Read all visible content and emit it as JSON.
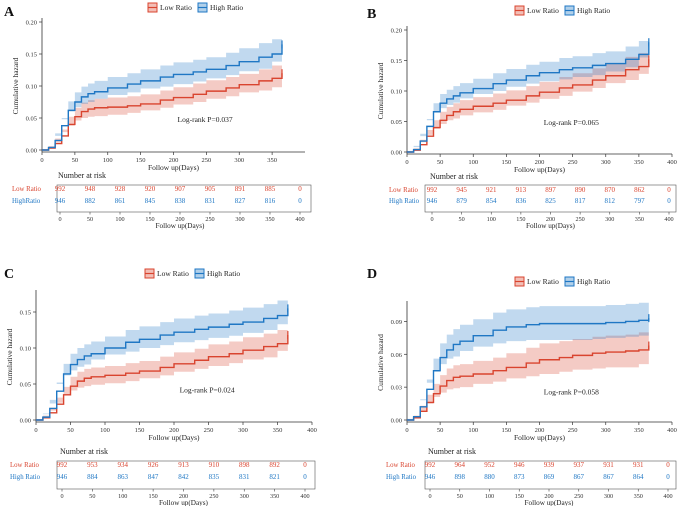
{
  "legend": {
    "low_label": "Low Ratio",
    "high_label": "High Ratio",
    "low_color": "#d9442f",
    "high_color": "#1f77c4"
  },
  "chart_data": [
    {
      "panel": "A",
      "type": "line",
      "title": "",
      "xlabel": "Follow up(Days)",
      "ylabel": "Cumulative hazard",
      "xlim": [
        0,
        400
      ],
      "ylim": [
        0,
        0.2
      ],
      "xticks": [
        0,
        50,
        100,
        150,
        200,
        250,
        300,
        350
      ],
      "yticks": [
        "0.00",
        "0.05",
        "0.10",
        "0.15",
        "0.20"
      ],
      "annotation": "Log-rank P=0.037",
      "series": [
        {
          "name": "Low Ratio",
          "x": [
            0,
            10,
            20,
            30,
            40,
            50,
            60,
            70,
            80,
            100,
            130,
            150,
            180,
            200,
            230,
            250,
            280,
            300,
            330,
            350,
            365
          ],
          "y": [
            0,
            0.003,
            0.01,
            0.022,
            0.04,
            0.052,
            0.06,
            0.064,
            0.066,
            0.067,
            0.069,
            0.072,
            0.078,
            0.082,
            0.087,
            0.092,
            0.097,
            0.102,
            0.108,
            0.112,
            0.12
          ],
          "lower": [
            0,
            0,
            0.002,
            0.012,
            0.028,
            0.038,
            0.046,
            0.05,
            0.052,
            0.053,
            0.055,
            0.058,
            0.062,
            0.066,
            0.071,
            0.075,
            0.08,
            0.084,
            0.09,
            0.093,
            0.098
          ],
          "upper": [
            0,
            0.006,
            0.018,
            0.032,
            0.052,
            0.066,
            0.074,
            0.078,
            0.08,
            0.082,
            0.084,
            0.087,
            0.093,
            0.098,
            0.104,
            0.109,
            0.114,
            0.119,
            0.126,
            0.132,
            0.143
          ]
        },
        {
          "name": "High Ratio",
          "x": [
            0,
            10,
            20,
            30,
            40,
            50,
            60,
            70,
            80,
            100,
            130,
            150,
            180,
            200,
            230,
            250,
            280,
            300,
            330,
            350,
            365
          ],
          "y": [
            0,
            0.004,
            0.015,
            0.038,
            0.062,
            0.075,
            0.083,
            0.088,
            0.091,
            0.097,
            0.103,
            0.108,
            0.114,
            0.118,
            0.122,
            0.126,
            0.132,
            0.138,
            0.145,
            0.15,
            0.165
          ],
          "lower": [
            0,
            0.001,
            0.008,
            0.026,
            0.048,
            0.06,
            0.067,
            0.072,
            0.075,
            0.08,
            0.086,
            0.09,
            0.096,
            0.099,
            0.103,
            0.107,
            0.112,
            0.117,
            0.123,
            0.127,
            0.138
          ],
          "upper": [
            0,
            0.008,
            0.022,
            0.05,
            0.076,
            0.09,
            0.099,
            0.104,
            0.108,
            0.114,
            0.12,
            0.126,
            0.132,
            0.137,
            0.141,
            0.145,
            0.152,
            0.159,
            0.167,
            0.173,
            0.19
          ]
        }
      ],
      "risk_table": {
        "title": "Number at risk",
        "rows": [
          {
            "label": "Low Ratio",
            "values": [
              "992",
              "948",
              "928",
              "920",
              "907",
              "905",
              "891",
              "885",
              "0"
            ]
          },
          {
            "label": "HighRatio",
            "values": [
              "946",
              "882",
              "861",
              "845",
              "838",
              "831",
              "827",
              "816",
              "0"
            ]
          }
        ],
        "x": [
          0,
          50,
          100,
          150,
          200,
          250,
          300,
          350,
          400
        ],
        "xlabel": "Follow up(Days)"
      }
    },
    {
      "panel": "B",
      "type": "line",
      "title": "",
      "xlabel": "Follow up(Days)",
      "ylabel": "Cumulative hazard",
      "xlim": [
        0,
        400
      ],
      "ylim": [
        0,
        0.2
      ],
      "xticks": [
        0,
        50,
        100,
        150,
        200,
        250,
        300,
        350,
        400
      ],
      "yticks": [
        "0.00",
        "0.05",
        "0.10",
        "0.15",
        "0.20"
      ],
      "annotation": "Log-rank P=0.065",
      "series": [
        {
          "name": "Low Ratio",
          "x": [
            0,
            10,
            20,
            30,
            40,
            50,
            60,
            70,
            80,
            100,
            130,
            150,
            180,
            200,
            230,
            250,
            280,
            300,
            330,
            350,
            365
          ],
          "y": [
            0,
            0.003,
            0.012,
            0.026,
            0.04,
            0.052,
            0.06,
            0.066,
            0.07,
            0.075,
            0.08,
            0.085,
            0.092,
            0.098,
            0.105,
            0.11,
            0.118,
            0.125,
            0.135,
            0.14,
            0.152
          ],
          "lower": [
            0,
            0,
            0.004,
            0.016,
            0.028,
            0.038,
            0.046,
            0.052,
            0.055,
            0.06,
            0.065,
            0.069,
            0.076,
            0.081,
            0.087,
            0.092,
            0.099,
            0.105,
            0.113,
            0.118,
            0.128
          ],
          "upper": [
            0,
            0.006,
            0.02,
            0.036,
            0.052,
            0.066,
            0.074,
            0.08,
            0.085,
            0.09,
            0.096,
            0.101,
            0.108,
            0.115,
            0.123,
            0.129,
            0.137,
            0.145,
            0.156,
            0.162,
            0.175
          ]
        },
        {
          "name": "High Ratio",
          "x": [
            0,
            10,
            20,
            30,
            40,
            50,
            60,
            70,
            80,
            100,
            130,
            150,
            180,
            200,
            230,
            250,
            280,
            300,
            330,
            350,
            365
          ],
          "y": [
            0,
            0.004,
            0.018,
            0.042,
            0.066,
            0.08,
            0.087,
            0.092,
            0.097,
            0.104,
            0.112,
            0.118,
            0.125,
            0.13,
            0.135,
            0.138,
            0.142,
            0.145,
            0.152,
            0.16,
            0.18
          ],
          "lower": [
            0,
            0.001,
            0.01,
            0.03,
            0.052,
            0.065,
            0.072,
            0.077,
            0.081,
            0.088,
            0.095,
            0.1,
            0.107,
            0.112,
            0.116,
            0.119,
            0.123,
            0.126,
            0.132,
            0.139,
            0.155
          ],
          "upper": [
            0,
            0.008,
            0.026,
            0.054,
            0.08,
            0.095,
            0.102,
            0.108,
            0.113,
            0.12,
            0.129,
            0.136,
            0.143,
            0.148,
            0.154,
            0.157,
            0.162,
            0.165,
            0.173,
            0.182,
            0.205
          ]
        }
      ],
      "risk_table": {
        "title": "Number at risk",
        "rows": [
          {
            "label": "Low Ratio",
            "values": [
              "992",
              "945",
              "921",
              "913",
              "897",
              "890",
              "870",
              "862",
              "0"
            ]
          },
          {
            "label": "High Ratio",
            "values": [
              "946",
              "879",
              "854",
              "836",
              "825",
              "817",
              "812",
              "797",
              "0"
            ]
          }
        ],
        "x": [
          0,
          50,
          100,
          150,
          200,
          250,
          300,
          350,
          400
        ],
        "xlabel": "Follow up(Days)"
      }
    },
    {
      "panel": "C",
      "type": "line",
      "title": "",
      "xlabel": "Follow up(Days)",
      "ylabel": "Cumulative hazard",
      "xlim": [
        0,
        400
      ],
      "ylim": [
        0,
        0.175
      ],
      "xticks": [
        0,
        50,
        100,
        150,
        200,
        250,
        300,
        350,
        400
      ],
      "yticks": [
        "0.00",
        "0.05",
        "0.10",
        "0.15"
      ],
      "yticks_at": [
        0,
        0.05,
        0.1,
        0.15
      ],
      "annotation": "Log-rank P=0.024",
      "series": [
        {
          "name": "Low Ratio",
          "x": [
            0,
            10,
            20,
            30,
            40,
            50,
            60,
            70,
            80,
            100,
            130,
            150,
            180,
            200,
            230,
            250,
            280,
            300,
            330,
            350,
            365
          ],
          "y": [
            0,
            0.003,
            0.01,
            0.022,
            0.035,
            0.047,
            0.054,
            0.058,
            0.06,
            0.062,
            0.065,
            0.068,
            0.073,
            0.078,
            0.083,
            0.088,
            0.092,
            0.097,
            0.102,
            0.106,
            0.118
          ],
          "lower": [
            0,
            0,
            0.003,
            0.013,
            0.024,
            0.034,
            0.041,
            0.045,
            0.047,
            0.049,
            0.051,
            0.054,
            0.058,
            0.062,
            0.067,
            0.071,
            0.075,
            0.079,
            0.084,
            0.087,
            0.096
          ],
          "upper": [
            0,
            0.006,
            0.017,
            0.031,
            0.046,
            0.06,
            0.067,
            0.071,
            0.073,
            0.075,
            0.079,
            0.082,
            0.088,
            0.094,
            0.099,
            0.105,
            0.109,
            0.115,
            0.12,
            0.125,
            0.14
          ]
        },
        {
          "name": "High Ratio",
          "x": [
            0,
            10,
            20,
            30,
            40,
            50,
            60,
            70,
            80,
            100,
            130,
            150,
            180,
            200,
            230,
            250,
            280,
            300,
            330,
            350,
            365
          ],
          "y": [
            0,
            0.004,
            0.016,
            0.04,
            0.064,
            0.077,
            0.084,
            0.089,
            0.092,
            0.1,
            0.108,
            0.112,
            0.118,
            0.122,
            0.126,
            0.129,
            0.133,
            0.136,
            0.141,
            0.145,
            0.155
          ],
          "lower": [
            0,
            0.001,
            0.009,
            0.028,
            0.05,
            0.062,
            0.069,
            0.074,
            0.077,
            0.084,
            0.091,
            0.095,
            0.1,
            0.104,
            0.108,
            0.111,
            0.114,
            0.117,
            0.121,
            0.125,
            0.133
          ],
          "upper": [
            0,
            0.008,
            0.023,
            0.052,
            0.078,
            0.092,
            0.1,
            0.105,
            0.109,
            0.116,
            0.125,
            0.13,
            0.136,
            0.141,
            0.145,
            0.148,
            0.152,
            0.156,
            0.161,
            0.166,
            0.178
          ]
        }
      ],
      "risk_table": {
        "title": "Number at risk",
        "rows": [
          {
            "label": "Low  Ratio",
            "values": [
              "992",
              "953",
              "934",
              "926",
              "913",
              "910",
              "898",
              "892",
              "0"
            ]
          },
          {
            "label": "High Ratio",
            "values": [
              "946",
              "884",
              "863",
              "847",
              "842",
              "835",
              "831",
              "821",
              "0"
            ]
          }
        ],
        "x": [
          0,
          50,
          100,
          150,
          200,
          250,
          300,
          350,
          400
        ],
        "xlabel": "Follow up(Days)"
      }
    },
    {
      "panel": "D",
      "type": "line",
      "title": "",
      "xlabel": "Follow up(Days)",
      "ylabel": "Cumulative hazard",
      "xlim": [
        0,
        400
      ],
      "ylim": [
        0,
        0.105
      ],
      "xticks": [
        0,
        50,
        100,
        150,
        200,
        250,
        300,
        350,
        400
      ],
      "yticks": [
        "0.00",
        "0.03",
        "0.06",
        "0.09"
      ],
      "yticks_at": [
        0,
        0.03,
        0.06,
        0.09
      ],
      "annotation": "Log-rank P=0.058",
      "series": [
        {
          "name": "Low Ratio",
          "x": [
            0,
            10,
            20,
            30,
            40,
            50,
            60,
            70,
            80,
            100,
            130,
            150,
            180,
            200,
            230,
            250,
            280,
            300,
            330,
            350,
            365
          ],
          "y": [
            0,
            0.002,
            0.008,
            0.016,
            0.024,
            0.031,
            0.036,
            0.039,
            0.04,
            0.042,
            0.045,
            0.048,
            0.052,
            0.055,
            0.057,
            0.059,
            0.061,
            0.062,
            0.063,
            0.064,
            0.068
          ],
          "lower": [
            0,
            0,
            0.003,
            0.009,
            0.015,
            0.021,
            0.025,
            0.028,
            0.029,
            0.03,
            0.033,
            0.035,
            0.038,
            0.04,
            0.042,
            0.044,
            0.046,
            0.047,
            0.048,
            0.048,
            0.051
          ],
          "upper": [
            0,
            0.004,
            0.013,
            0.023,
            0.033,
            0.041,
            0.047,
            0.05,
            0.051,
            0.054,
            0.057,
            0.061,
            0.066,
            0.07,
            0.072,
            0.074,
            0.076,
            0.077,
            0.078,
            0.08,
            0.085
          ]
        },
        {
          "name": "High Ratio",
          "x": [
            0,
            10,
            20,
            30,
            40,
            50,
            60,
            70,
            80,
            100,
            130,
            150,
            180,
            200,
            230,
            250,
            280,
            300,
            330,
            350,
            365
          ],
          "y": [
            0,
            0.003,
            0.012,
            0.028,
            0.045,
            0.057,
            0.064,
            0.069,
            0.072,
            0.077,
            0.082,
            0.085,
            0.087,
            0.088,
            0.088,
            0.088,
            0.088,
            0.089,
            0.09,
            0.091,
            0.093
          ],
          "lower": [
            0,
            0.001,
            0.006,
            0.019,
            0.034,
            0.044,
            0.051,
            0.056,
            0.058,
            0.063,
            0.067,
            0.07,
            0.072,
            0.073,
            0.073,
            0.073,
            0.073,
            0.074,
            0.075,
            0.076,
            0.077
          ],
          "upper": [
            0,
            0.006,
            0.018,
            0.037,
            0.056,
            0.07,
            0.078,
            0.083,
            0.087,
            0.092,
            0.098,
            0.101,
            0.103,
            0.104,
            0.104,
            0.104,
            0.104,
            0.105,
            0.106,
            0.107,
            0.11
          ]
        }
      ],
      "risk_table": {
        "title": "Number at risk",
        "rows": [
          {
            "label": "Low  Ratio",
            "values": [
              "992",
              "964",
              "952",
              "946",
              "939",
              "937",
              "931",
              "931",
              "0"
            ]
          },
          {
            "label": "High Ratio",
            "values": [
              "946",
              "898",
              "880",
              "873",
              "869",
              "867",
              "867",
              "864",
              "0"
            ]
          }
        ],
        "x": [
          0,
          50,
          100,
          150,
          200,
          250,
          300,
          350,
          400
        ],
        "xlabel": "Follow up(Days)"
      }
    }
  ]
}
